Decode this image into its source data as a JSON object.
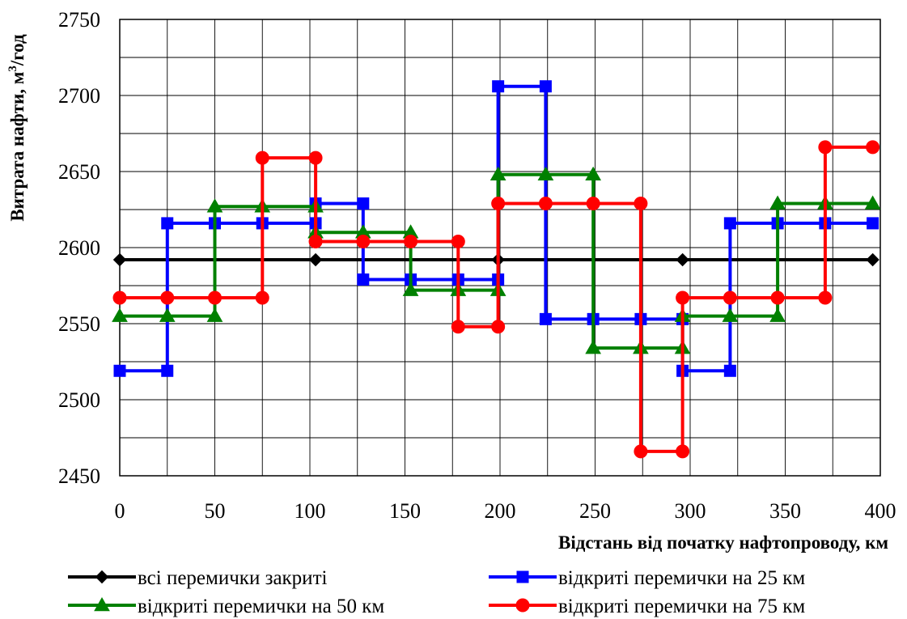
{
  "chart_data": {
    "type": "line",
    "title": "",
    "xlabel": "Відстань від початку нафтопроводу, км",
    "ylabel_main": "Витрата нафти, м",
    "ylabel_sup": "3",
    "ylabel_tail": "/год",
    "xlim": [
      0,
      400
    ],
    "ylim": [
      2450,
      2750
    ],
    "x_ticks": [
      0,
      50,
      100,
      150,
      200,
      250,
      300,
      350,
      400
    ],
    "y_ticks": [
      2450,
      2500,
      2550,
      2600,
      2650,
      2700,
      2750
    ],
    "x_tick_labels": [
      "0",
      "50",
      "100",
      "150",
      "200",
      "250",
      "300",
      "350",
      "400"
    ],
    "y_tick_labels": [
      "2450",
      "2500",
      "2550",
      "2600",
      "2650",
      "2700",
      "2750"
    ],
    "grid": true,
    "legend_position": "bottom",
    "series": [
      {
        "name": "всі перемички закриті",
        "color": "#000000",
        "marker": "diamond",
        "points": [
          [
            0,
            2592
          ],
          [
            103,
            2592
          ],
          [
            199,
            2592
          ],
          [
            296,
            2592
          ],
          [
            396,
            2592
          ]
        ]
      },
      {
        "name": "відкриті перемички на 25 км",
        "color": "#0000ff",
        "marker": "square",
        "points": [
          [
            0,
            2519
          ],
          [
            25,
            2519
          ],
          [
            25,
            2616
          ],
          [
            50,
            2616
          ],
          [
            75,
            2616
          ],
          [
            103,
            2616
          ],
          [
            103,
            2629
          ],
          [
            128,
            2629
          ],
          [
            128,
            2579
          ],
          [
            153,
            2579
          ],
          [
            178,
            2579
          ],
          [
            199,
            2579
          ],
          [
            199,
            2706
          ],
          [
            224,
            2706
          ],
          [
            224,
            2553
          ],
          [
            249,
            2553
          ],
          [
            274,
            2553
          ],
          [
            296,
            2553
          ],
          [
            296,
            2519
          ],
          [
            321,
            2519
          ],
          [
            321,
            2616
          ],
          [
            346,
            2616
          ],
          [
            371,
            2616
          ],
          [
            396,
            2616
          ]
        ]
      },
      {
        "name": "відкриті перемички на 50 км",
        "color": "#008000",
        "marker": "triangle",
        "points": [
          [
            0,
            2555
          ],
          [
            25,
            2555
          ],
          [
            50,
            2555
          ],
          [
            50,
            2627
          ],
          [
            75,
            2627
          ],
          [
            103,
            2627
          ],
          [
            103,
            2610
          ],
          [
            128,
            2610
          ],
          [
            153,
            2610
          ],
          [
            153,
            2572
          ],
          [
            178,
            2572
          ],
          [
            199,
            2572
          ],
          [
            199,
            2648
          ],
          [
            224,
            2648
          ],
          [
            249,
            2648
          ],
          [
            249,
            2534
          ],
          [
            274,
            2534
          ],
          [
            296,
            2534
          ],
          [
            296,
            2555
          ],
          [
            321,
            2555
          ],
          [
            346,
            2555
          ],
          [
            346,
            2629
          ],
          [
            371,
            2629
          ],
          [
            396,
            2629
          ]
        ]
      },
      {
        "name": "відкриті перемички на 75 км",
        "color": "#ff0000",
        "marker": "circle",
        "points": [
          [
            0,
            2567
          ],
          [
            25,
            2567
          ],
          [
            50,
            2567
          ],
          [
            75,
            2567
          ],
          [
            75,
            2659
          ],
          [
            103,
            2659
          ],
          [
            103,
            2604
          ],
          [
            128,
            2604
          ],
          [
            153,
            2604
          ],
          [
            178,
            2604
          ],
          [
            178,
            2548
          ],
          [
            199,
            2548
          ],
          [
            199,
            2629
          ],
          [
            224,
            2629
          ],
          [
            249,
            2629
          ],
          [
            274,
            2629
          ],
          [
            274,
            2466
          ],
          [
            296,
            2466
          ],
          [
            296,
            2567
          ],
          [
            321,
            2567
          ],
          [
            346,
            2567
          ],
          [
            371,
            2567
          ],
          [
            371,
            2666
          ],
          [
            396,
            2666
          ]
        ]
      }
    ]
  }
}
